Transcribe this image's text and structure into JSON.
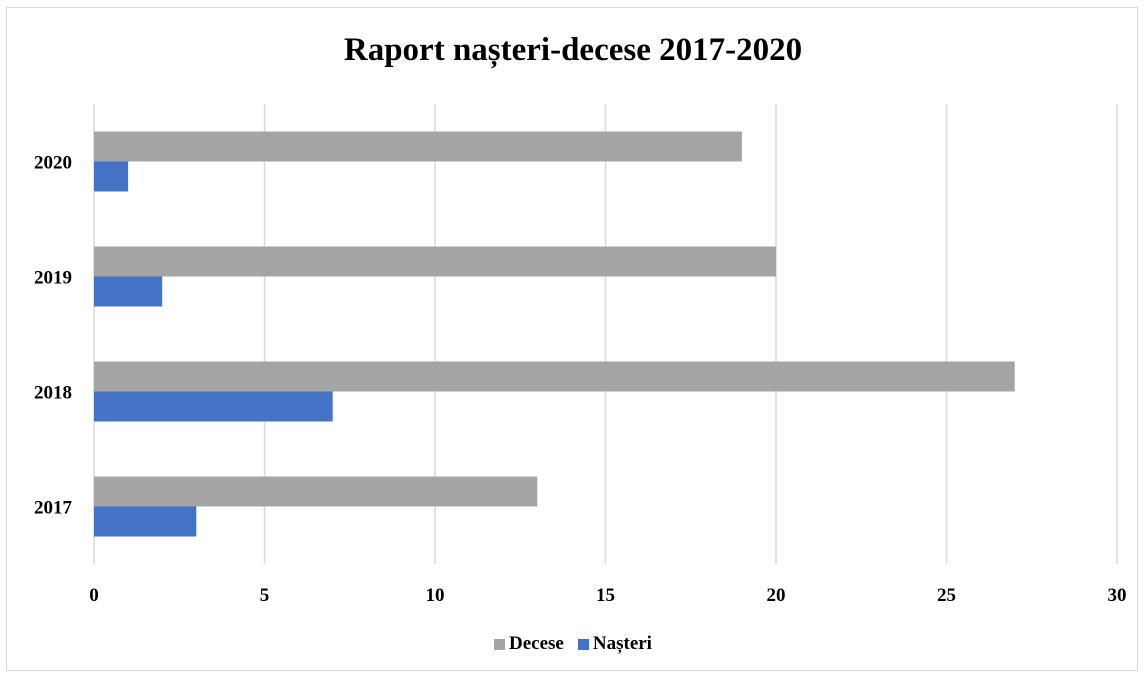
{
  "chart_data": {
    "type": "bar",
    "orientation": "horizontal",
    "title": "Raport nașteri-decese 2017-2020",
    "categories": [
      "2017",
      "2018",
      "2019",
      "2020"
    ],
    "series": [
      {
        "name": "Decese",
        "values": [
          13,
          27,
          20,
          19
        ],
        "color": "#a5a5a5"
      },
      {
        "name": "Nașteri",
        "values": [
          3,
          7,
          2,
          1
        ],
        "color": "#4472c4"
      }
    ],
    "xlim": [
      0,
      30
    ],
    "x_ticks": [
      "0",
      "5",
      "10",
      "15",
      "20",
      "25",
      "30"
    ],
    "grid": "vertical",
    "legend_position": "bottom"
  }
}
